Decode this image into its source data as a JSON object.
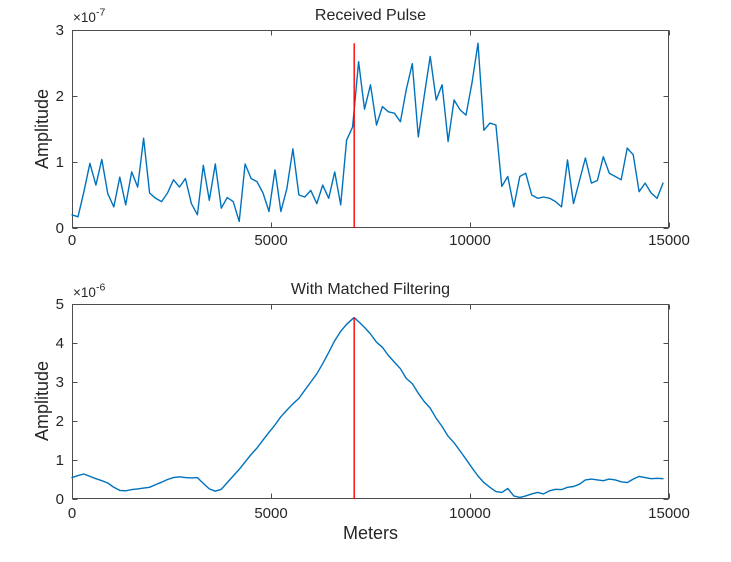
{
  "figure": {
    "background": "#ffffff",
    "axis_color": "#4d4d4d",
    "text_color": "#262626"
  },
  "chart_data": [
    {
      "type": "line",
      "title": "Received Pulse",
      "xlabel": "",
      "ylabel": "Amplitude",
      "y_exponent_base": "×10",
      "y_exponent_power": "-7",
      "y_unit_scale": 1e-07,
      "xlim": [
        0,
        15000
      ],
      "ylim": [
        0,
        3
      ],
      "xticks": [
        0,
        5000,
        10000,
        15000
      ],
      "yticks": [
        0,
        1,
        2,
        3
      ],
      "grid": false,
      "legend": null,
      "series_name": "received-pulse-signal",
      "line_color": "#0072bd",
      "marker_line": {
        "x": 7090,
        "y_from": 0,
        "y_to": 2.8,
        "color": "#ff0000"
      },
      "x_start": 0,
      "x_step": 150,
      "values": [
        0.2,
        0.17,
        0.55,
        0.98,
        0.65,
        1.04,
        0.52,
        0.32,
        0.77,
        0.35,
        0.85,
        0.62,
        1.36,
        0.53,
        0.45,
        0.4,
        0.53,
        0.73,
        0.62,
        0.75,
        0.37,
        0.2,
        0.95,
        0.42,
        0.97,
        0.3,
        0.46,
        0.4,
        0.1,
        0.97,
        0.75,
        0.7,
        0.53,
        0.25,
        0.88,
        0.25,
        0.6,
        1.2,
        0.5,
        0.47,
        0.57,
        0.37,
        0.65,
        0.45,
        0.85,
        0.35,
        1.33,
        1.53,
        2.52,
        1.8,
        2.17,
        1.56,
        1.84,
        1.76,
        1.74,
        1.61,
        2.1,
        2.49,
        1.38,
        2.0,
        2.6,
        1.94,
        2.17,
        1.31,
        1.94,
        1.79,
        1.71,
        2.2,
        2.8,
        1.48,
        1.59,
        1.56,
        0.63,
        0.78,
        0.32,
        0.78,
        0.83,
        0.5,
        0.45,
        0.47,
        0.45,
        0.4,
        0.32,
        1.03,
        0.37,
        0.72,
        1.06,
        0.68,
        0.72,
        1.08,
        0.83,
        0.78,
        0.73,
        1.21,
        1.11,
        0.55,
        0.68,
        0.53,
        0.45,
        0.68
      ]
    },
    {
      "type": "line",
      "title": "With Matched Filtering",
      "xlabel": "Meters",
      "ylabel": "Amplitude",
      "y_exponent_base": "×10",
      "y_exponent_power": "-6",
      "y_unit_scale": 1e-06,
      "xlim": [
        0,
        15000
      ],
      "ylim": [
        0,
        5
      ],
      "xticks": [
        0,
        5000,
        10000,
        15000
      ],
      "yticks": [
        0,
        1,
        2,
        3,
        4,
        5
      ],
      "grid": false,
      "legend": null,
      "series_name": "matched-filter-output",
      "line_color": "#0072bd",
      "marker_line": {
        "x": 7090,
        "y_from": 0,
        "y_to": 4.65,
        "color": "#ff0000"
      },
      "x": [
        0,
        150,
        300,
        450,
        600,
        750,
        900,
        1050,
        1200,
        1350,
        1500,
        1650,
        1800,
        1950,
        2100,
        2250,
        2400,
        2550,
        2700,
        2850,
        3000,
        3150,
        3300,
        3450,
        3600,
        3750,
        3900,
        4050,
        4200,
        4350,
        4500,
        4650,
        4800,
        4950,
        5100,
        5250,
        5400,
        5550,
        5700,
        5850,
        6000,
        6150,
        6300,
        6450,
        6600,
        6750,
        6900,
        7050,
        7090,
        7200,
        7350,
        7500,
        7650,
        7800,
        7950,
        8100,
        8250,
        8400,
        8550,
        8700,
        8850,
        9000,
        9150,
        9300,
        9450,
        9600,
        9750,
        9900,
        10050,
        10200,
        10350,
        10500,
        10650,
        10800,
        10950,
        11100,
        11250,
        11400,
        11550,
        11700,
        11850,
        12000,
        12150,
        12300,
        12450,
        12600,
        12750,
        12900,
        13050,
        13200,
        13350,
        13500,
        13650,
        13800,
        13950,
        14100,
        14250,
        14400,
        14550,
        14700,
        14850
      ],
      "values": [
        0.55,
        0.6,
        0.64,
        0.58,
        0.52,
        0.47,
        0.41,
        0.3,
        0.22,
        0.21,
        0.24,
        0.26,
        0.28,
        0.3,
        0.37,
        0.43,
        0.5,
        0.55,
        0.57,
        0.55,
        0.54,
        0.55,
        0.4,
        0.26,
        0.2,
        0.25,
        0.42,
        0.59,
        0.76,
        0.95,
        1.14,
        1.31,
        1.51,
        1.71,
        1.9,
        2.11,
        2.28,
        2.44,
        2.58,
        2.79,
        3.0,
        3.21,
        3.47,
        3.76,
        4.06,
        4.3,
        4.48,
        4.62,
        4.65,
        4.55,
        4.4,
        4.23,
        4.02,
        3.89,
        3.68,
        3.51,
        3.34,
        3.09,
        2.96,
        2.71,
        2.5,
        2.33,
        2.07,
        1.86,
        1.61,
        1.44,
        1.23,
        1.02,
        0.8,
        0.59,
        0.42,
        0.3,
        0.19,
        0.17,
        0.27,
        0.08,
        0.04,
        0.08,
        0.13,
        0.17,
        0.13,
        0.21,
        0.25,
        0.24,
        0.3,
        0.32,
        0.38,
        0.49,
        0.51,
        0.49,
        0.47,
        0.51,
        0.49,
        0.44,
        0.42,
        0.51,
        0.58,
        0.55,
        0.52,
        0.53,
        0.52
      ]
    }
  ]
}
